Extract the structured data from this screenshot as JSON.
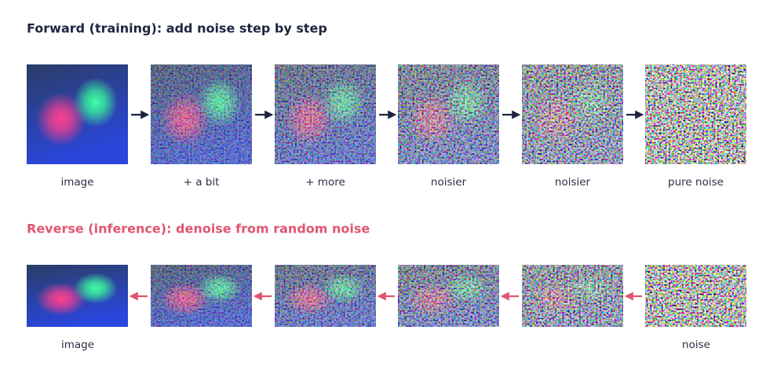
{
  "forward": {
    "title": "Forward (training): add noise step by step",
    "labels": [
      "image",
      "+ a bit",
      "+ more",
      "noisier",
      "noisier",
      "pure noise"
    ]
  },
  "reverse": {
    "title": "Reverse (inference): denoise from random noise",
    "start_label": "image",
    "end_label": "noise"
  }
}
